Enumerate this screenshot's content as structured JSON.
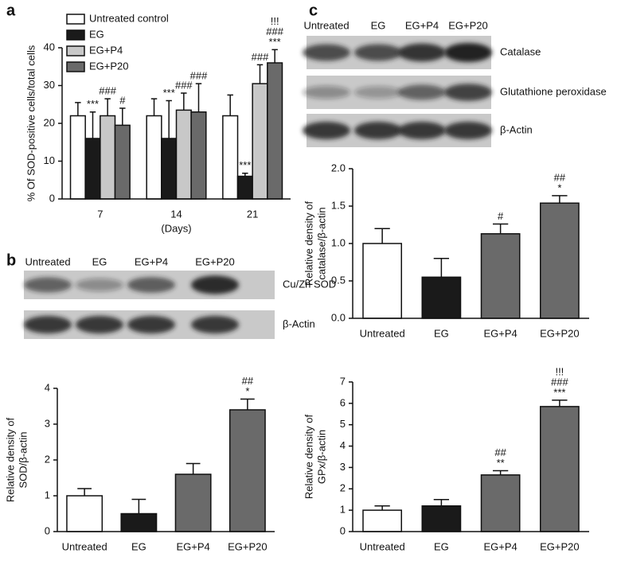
{
  "panel_labels": [
    "a",
    "b",
    "c"
  ],
  "blots": [
    {
      "lanes": [
        "Untreated",
        "EG",
        "EG+P4",
        "EG+P20"
      ],
      "rows": [
        "Cu/Zn SOD",
        "β-Actin"
      ]
    },
    {
      "lanes": [
        "Untreated",
        "EG",
        "EG+P4",
        "EG+P20"
      ],
      "rows": [
        "Catalase",
        "Glutathione peroxidase",
        "β-Actin"
      ]
    }
  ],
  "chart_data": [
    {
      "type": "bar",
      "categories": [
        "7",
        "14",
        "21"
      ],
      "xlabel": "(Days)",
      "ylabel": [
        "% Of SOD-positive cells/total cells"
      ],
      "ylim": [
        0,
        40
      ],
      "yticks": [
        0,
        10,
        20,
        30,
        40
      ],
      "legend": "top-left",
      "series": [
        {
          "name": "Untreated control",
          "color": "#ffffff",
          "values": [
            22,
            22,
            22
          ],
          "errors": [
            3.5,
            4.5,
            5.5
          ],
          "annotations": [
            [],
            [],
            []
          ]
        },
        {
          "name": "EG",
          "color": "#1a1a1a",
          "values": [
            16,
            16,
            6
          ],
          "errors": [
            7,
            10,
            0.8
          ],
          "annotations": [
            [
              "***"
            ],
            [
              "***"
            ],
            [
              "***"
            ]
          ]
        },
        {
          "name": "EG+P4",
          "color": "#c8c8c8",
          "values": [
            22,
            23.5,
            30.5
          ],
          "errors": [
            4.5,
            4.5,
            5
          ],
          "annotations": [
            [
              "###"
            ],
            [
              "###"
            ],
            [
              "###"
            ]
          ]
        },
        {
          "name": "EG+P20",
          "color": "#6a6a6a",
          "values": [
            19.5,
            23,
            36
          ],
          "errors": [
            4.5,
            7.5,
            3.5
          ],
          "annotations": [
            [
              "#"
            ],
            [
              "###"
            ],
            [
              "!!!",
              "###",
              "***"
            ]
          ]
        }
      ]
    },
    {
      "type": "bar",
      "categories": [
        "Untreated",
        "EG",
        "EG+P4",
        "EG+P20"
      ],
      "ylabel": [
        "Relative density of",
        "SOD/β-actin"
      ],
      "ylim": [
        0,
        4
      ],
      "yticks": [
        0,
        1,
        2,
        3,
        4
      ],
      "values": [
        1.0,
        0.5,
        1.6,
        3.4
      ],
      "errors": [
        0.2,
        0.4,
        0.3,
        0.3
      ],
      "colors": [
        "#ffffff",
        "#1a1a1a",
        "#6a6a6a",
        "#6a6a6a"
      ],
      "annotations": [
        [],
        [],
        [],
        [
          "##",
          "*"
        ]
      ]
    },
    {
      "type": "bar",
      "categories": [
        "Untreated",
        "EG",
        "EG+P4",
        "EG+P20"
      ],
      "ylabel": [
        "Relative density of",
        "catalase/β-actin"
      ],
      "ylim": [
        0,
        2
      ],
      "yticks": [
        {
          "value": 0,
          "label": "0.0"
        },
        0.5,
        {
          "value": 1,
          "label": "1.0"
        },
        1.5,
        {
          "value": 2,
          "label": "2.0"
        }
      ],
      "values": [
        1.0,
        0.55,
        1.13,
        1.54
      ],
      "errors": [
        0.2,
        0.25,
        0.13,
        0.1
      ],
      "colors": [
        "#ffffff",
        "#1a1a1a",
        "#6a6a6a",
        "#6a6a6a"
      ],
      "annotations": [
        [],
        [],
        [
          "#"
        ],
        [
          "##",
          "*"
        ]
      ]
    },
    {
      "type": "bar",
      "categories": [
        "Untreated",
        "EG",
        "EG+P4",
        "EG+P20"
      ],
      "ylabel": [
        "Relative density of",
        "GPx/β-actin"
      ],
      "ylim": [
        0,
        7
      ],
      "yticks": [
        0,
        1,
        2,
        3,
        4,
        5,
        6,
        7
      ],
      "values": [
        1.0,
        1.2,
        2.65,
        5.85
      ],
      "errors": [
        0.2,
        0.3,
        0.2,
        0.3
      ],
      "colors": [
        "#ffffff",
        "#1a1a1a",
        "#6a6a6a",
        "#6a6a6a"
      ],
      "annotations": [
        [],
        [],
        [
          "##",
          "**"
        ],
        [
          "!!!",
          "###",
          "***"
        ]
      ]
    }
  ]
}
